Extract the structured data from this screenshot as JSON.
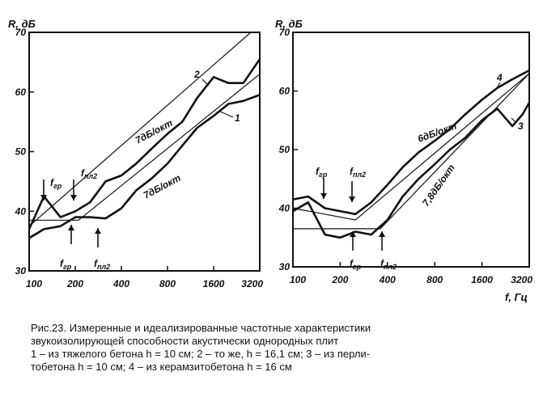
{
  "chart_data": [
    {
      "type": "line",
      "ylabel": "R, дБ",
      "xlabel": "",
      "x_scale": "log",
      "x_ticks": [
        100,
        200,
        400,
        800,
        1600,
        3200
      ],
      "x_tick_labels": [
        "100",
        "200",
        "400",
        "800",
        "1600",
        "3200"
      ],
      "xlim": [
        100,
        3200
      ],
      "y_ticks": [
        30,
        40,
        50,
        60,
        70
      ],
      "y_tick_labels": [
        "30",
        "40",
        "50",
        "60",
        "70"
      ],
      "ylim": [
        30,
        70
      ],
      "series": [
        {
          "name": "1",
          "x": [
            100,
            125,
            160,
            200,
            250,
            315,
            400,
            500,
            630,
            800,
            1000,
            1250,
            1600,
            2000,
            2500,
            3200
          ],
          "y": [
            35.5,
            37,
            37.5,
            39,
            39,
            38.8,
            40.5,
            43.5,
            45.5,
            48,
            51,
            54,
            56,
            58,
            58.5,
            59.5
          ]
        },
        {
          "name": "2",
          "x": [
            100,
            125,
            160,
            200,
            250,
            315,
            400,
            500,
            630,
            800,
            1000,
            1250,
            1600,
            2000,
            2500,
            3200
          ],
          "y": [
            37,
            42.5,
            39,
            40,
            41.5,
            45,
            46,
            48,
            50.5,
            53,
            55,
            59,
            62.5,
            61.5,
            61.5,
            65.5
          ]
        }
      ],
      "ideal_lines": [
        {
          "x": [
            100,
            2800
          ],
          "y": [
            37.5,
            70
          ]
        },
        {
          "x": [
            100,
            210,
            3200
          ],
          "y": [
            38.5,
            38.5,
            63
          ]
        }
      ],
      "annotations": [
        {
          "text": "2"
        },
        {
          "text": "1"
        },
        {
          "text": "7дБ/окт"
        },
        {
          "text": "7дБ/окт"
        },
        {
          "text": "f",
          "sub": "гр"
        },
        {
          "text": "f",
          "sub": "пл2"
        },
        {
          "text": "f",
          "sub": "гр"
        },
        {
          "text": "f",
          "sub": "пл2"
        }
      ]
    },
    {
      "type": "line",
      "ylabel": "R, дБ",
      "xlabel": "f, Гц",
      "x_scale": "log",
      "x_ticks": [
        100,
        200,
        400,
        800,
        1600,
        3200
      ],
      "x_tick_labels": [
        "100",
        "200",
        "400",
        "800",
        "1600",
        "3200"
      ],
      "xlim": [
        100,
        3200
      ],
      "y_ticks": [
        30,
        40,
        50,
        60,
        70
      ],
      "y_tick_labels": [
        "30",
        "40",
        "50",
        "60",
        "70"
      ],
      "ylim": [
        30,
        70
      ],
      "series": [
        {
          "name": "3",
          "x": [
            100,
            125,
            160,
            200,
            250,
            315,
            400,
            500,
            630,
            800,
            1000,
            1250,
            1600,
            2000,
            2500,
            2900,
            3200
          ],
          "y": [
            39.5,
            41,
            35.5,
            35,
            36,
            35.5,
            38,
            42,
            45,
            47.5,
            50,
            52,
            55,
            57,
            54,
            56,
            58
          ]
        },
        {
          "name": "4",
          "x": [
            100,
            125,
            160,
            200,
            250,
            315,
            400,
            500,
            630,
            800,
            1000,
            1250,
            1600,
            2000,
            2500,
            3200
          ],
          "y": [
            41.5,
            42,
            40,
            39.5,
            39,
            41,
            44,
            47,
            49.5,
            51.5,
            53.5,
            56,
            58.5,
            60.5,
            62,
            63.5
          ]
        }
      ],
      "ideal_lines": [
        {
          "x": [
            100,
            250,
            3200
          ],
          "y": [
            40,
            38,
            63
          ]
        },
        {
          "x": [
            100,
            360,
            3200
          ],
          "y": [
            36.5,
            36.5,
            63
          ]
        }
      ],
      "annotations": [
        {
          "text": "4"
        },
        {
          "text": "3"
        },
        {
          "text": "6дБ/окт"
        },
        {
          "text": "7,8дБ/окт"
        },
        {
          "text": "f",
          "sub": "гр"
        },
        {
          "text": "f",
          "sub": "пл2"
        },
        {
          "text": "f",
          "sub": "гр"
        },
        {
          "text": "f",
          "sub": "пл2"
        }
      ]
    }
  ],
  "caption": {
    "line1": "Рис.23. Измеренные и идеализированные частотные характеристики",
    "line2": "звукоизолирующей способности акустически однородных плит",
    "line3": "1 – из тяжелого бетона h = 10 см; 2 – то же, h = 16,1 см; 3 – из перли-",
    "line4": "тобетона h = 10 см; 4 – из керамзитобетона h = 16 см"
  }
}
